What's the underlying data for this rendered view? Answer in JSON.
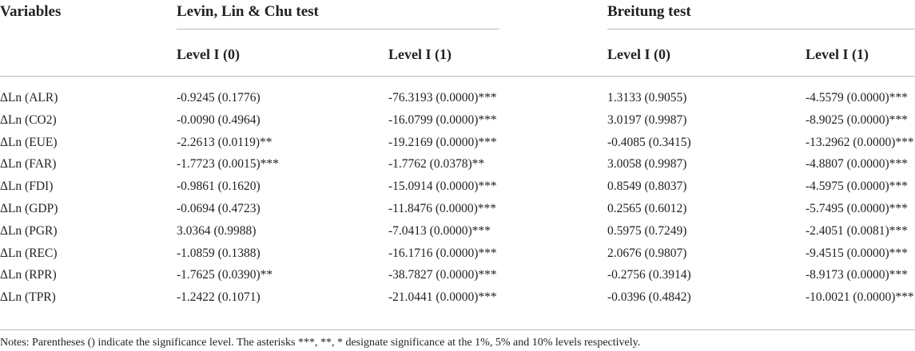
{
  "table": {
    "header": {
      "variables": "Variables",
      "llc_group": "Levin, Lin & Chu test",
      "breitung_group": "Breitung test",
      "level0": "Level I (0)",
      "level1": "Level I (1)"
    },
    "rows": [
      {
        "var": "ΔLn (ALR)",
        "llc0": "-0.9245 (0.1776)",
        "llc1": "-76.3193 (0.0000)***",
        "br0": "1.3133 (0.9055)",
        "br1": "-4.5579 (0.0000)***"
      },
      {
        "var": "ΔLn (CO2)",
        "llc0": "-0.0090 (0.4964)",
        "llc1": "-16.0799 (0.0000)***",
        "br0": "3.0197 (0.9987)",
        "br1": "-8.9025 (0.0000)***"
      },
      {
        "var": "ΔLn (EUE)",
        "llc0": "-2.2613 (0.0119)**",
        "llc1": "-19.2169 (0.0000)***",
        "br0": "-0.4085 (0.3415)",
        "br1": "-13.2962 (0.0000)***"
      },
      {
        "var": "ΔLn (FAR)",
        "llc0": "-1.7723 (0.0015)***",
        "llc1": "-1.7762 (0.0378)**",
        "br0": "3.0058 (0.9987)",
        "br1": "-4.8807 (0.0000)***"
      },
      {
        "var": "ΔLn (FDI)",
        "llc0": "-0.9861 (0.1620)",
        "llc1": "-15.0914 (0.0000)***",
        "br0": "0.8549 (0.8037)",
        "br1": "-4.5975 (0.0000)***"
      },
      {
        "var": "ΔLn (GDP)",
        "llc0": "-0.0694 (0.4723)",
        "llc1": "-11.8476 (0.0000)***",
        "br0": "0.2565 (0.6012)",
        "br1": "-5.7495 (0.0000)***"
      },
      {
        "var": "ΔLn (PGR)",
        "llc0": "3.0364 (0.9988)",
        "llc1": "-7.0413 (0.0000)***",
        "br0": "0.5975 (0.7249)",
        "br1": "-2.4051 (0.0081)***"
      },
      {
        "var": "ΔLn (REC)",
        "llc0": "-1.0859 (0.1388)",
        "llc1": "-16.1716 (0.0000)***",
        "br0": "2.0676 (0.9807)",
        "br1": "-9.4515 (0.0000)***"
      },
      {
        "var": "ΔLn (RPR)",
        "llc0": "-1.7625 (0.0390)**",
        "llc1": "-38.7827 (0.0000)***",
        "br0": "-0.2756 (0.3914)",
        "br1": "-8.9173 (0.0000)***"
      },
      {
        "var": "ΔLn (TPR)",
        "llc0": "-1.2422 (0.1071)",
        "llc1": "-21.0441 (0.0000)***",
        "br0": "-0.0396 (0.4842)",
        "br1": "-10.0021 (0.0000)***"
      }
    ],
    "notes": "Notes: Parentheses () indicate the significance level. The asterisks ***, **, * designate significance at the 1%, 5% and 10% levels respectively."
  }
}
